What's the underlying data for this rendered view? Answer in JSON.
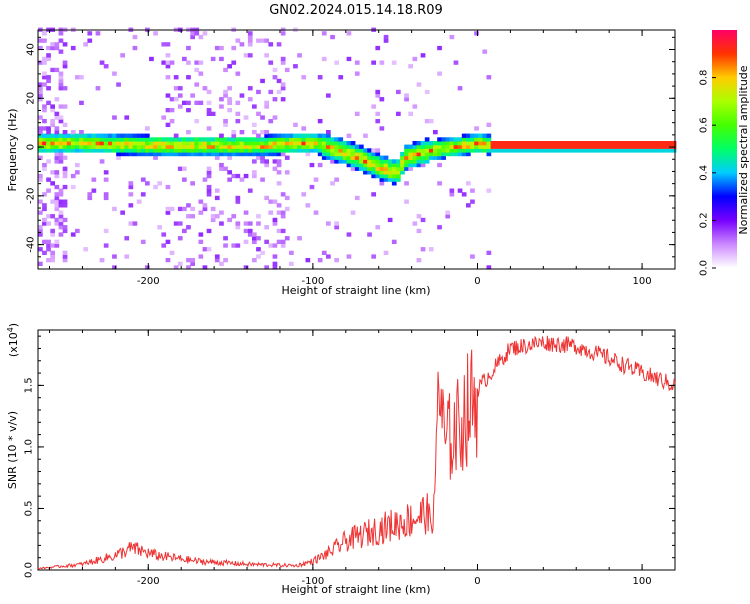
{
  "title": "GN02.2024.015.14.18.R09",
  "chart_data": [
    {
      "type": "heatmap",
      "xlabel": "Height of straight line (km)",
      "ylabel": "Frequency (Hz)",
      "xlim": [
        -267,
        120
      ],
      "ylim": [
        -50,
        48
      ],
      "xticks": [
        -200,
        -100,
        0,
        100
      ],
      "yticks": [
        -40,
        -20,
        0,
        20,
        40
      ],
      "colorbar": {
        "label": "Normalized spectral amplitude",
        "range": [
          0.0,
          1.0
        ],
        "ticks": [
          0.0,
          0.2,
          0.4,
          0.6,
          0.8
        ],
        "colors": [
          "#ffffff",
          "#cc88ff",
          "#7700ff",
          "#0000ff",
          "#00ccff",
          "#00ff66",
          "#44ff00",
          "#aaff00",
          "#ffcc00",
          "#ff3300",
          "#ff0066"
        ]
      },
      "ridge": {
        "x": [
          -267,
          -240,
          -200,
          -160,
          -130,
          -110,
          -100,
          -90,
          -80,
          -70,
          -60,
          -50,
          -45,
          -40,
          -35,
          -30,
          -20,
          -10,
          0,
          8,
          120
        ],
        "y": [
          1,
          1,
          0,
          0,
          0,
          1,
          1,
          -1,
          -3,
          -6,
          -9,
          -11,
          -5,
          -4,
          -3,
          -2,
          -1,
          0,
          1,
          0,
          0
        ]
      }
    },
    {
      "type": "line",
      "xlabel": "Height of straight line (km)",
      "ylabel": "SNR (10 * v/v)",
      "multiplier": "(x10",
      "multiplier_exp": "4",
      "multiplier_close": ")",
      "xlim": [
        -267,
        120
      ],
      "ylim": [
        0,
        1.95
      ],
      "xticks": [
        -200,
        -100,
        0,
        100
      ],
      "yticks": [
        0.0,
        0.5,
        1.0,
        1.5
      ],
      "color": "#ee3333",
      "envelope": {
        "x": [
          -267,
          -240,
          -220,
          -210,
          -195,
          -170,
          -140,
          -110,
          -100,
          -90,
          -80,
          -60,
          -40,
          -30,
          -26,
          -24,
          -20,
          -12,
          -5,
          5,
          20,
          40,
          60,
          80,
          100,
          120
        ],
        "y": [
          0.01,
          0.04,
          0.1,
          0.15,
          0.1,
          0.06,
          0.04,
          0.03,
          0.06,
          0.12,
          0.2,
          0.28,
          0.35,
          0.4,
          0.5,
          1.65,
          1.05,
          1.2,
          1.38,
          1.55,
          1.8,
          1.85,
          1.82,
          1.72,
          1.6,
          1.5
        ]
      }
    }
  ]
}
